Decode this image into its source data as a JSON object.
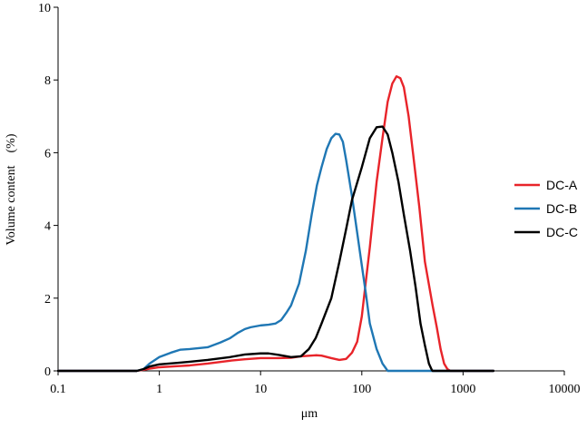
{
  "chart_data": {
    "type": "line",
    "title": "",
    "xlabel": "μm",
    "ylabel": "Volume content　(%)",
    "x_scale": "log",
    "xlim": [
      0.1,
      10000
    ],
    "ylim": [
      0,
      10
    ],
    "x_ticks": [
      0.1,
      1,
      10,
      100,
      1000,
      10000
    ],
    "x_tick_labels": [
      "0.1",
      "1",
      "10",
      "100",
      "1000",
      "10000"
    ],
    "y_ticks": [
      0,
      2,
      4,
      6,
      8,
      10
    ],
    "y_tick_labels": [
      "0",
      "2",
      "4",
      "6",
      "8",
      "10"
    ],
    "grid": false,
    "legend_position": "right",
    "series": [
      {
        "name": "DC-A",
        "color": "#e8242a",
        "points": [
          [
            0.1,
            0
          ],
          [
            0.6,
            0
          ],
          [
            0.7,
            0.03
          ],
          [
            0.8,
            0.06
          ],
          [
            1,
            0.1
          ],
          [
            1.5,
            0.13
          ],
          [
            2,
            0.15
          ],
          [
            3,
            0.2
          ],
          [
            5,
            0.28
          ],
          [
            7,
            0.32
          ],
          [
            10,
            0.35
          ],
          [
            15,
            0.35
          ],
          [
            20,
            0.36
          ],
          [
            25,
            0.4
          ],
          [
            35,
            0.43
          ],
          [
            40,
            0.42
          ],
          [
            50,
            0.35
          ],
          [
            60,
            0.3
          ],
          [
            70,
            0.33
          ],
          [
            80,
            0.5
          ],
          [
            90,
            0.8
          ],
          [
            100,
            1.5
          ],
          [
            110,
            2.5
          ],
          [
            120,
            3.4
          ],
          [
            140,
            5.2
          ],
          [
            160,
            6.4
          ],
          [
            180,
            7.4
          ],
          [
            200,
            7.9
          ],
          [
            220,
            8.1
          ],
          [
            240,
            8.05
          ],
          [
            260,
            7.8
          ],
          [
            290,
            7.0
          ],
          [
            320,
            6.0
          ],
          [
            370,
            4.5
          ],
          [
            420,
            3.0
          ],
          [
            500,
            1.8
          ],
          [
            550,
            1.2
          ],
          [
            600,
            0.6
          ],
          [
            650,
            0.2
          ],
          [
            700,
            0.05
          ],
          [
            750,
            0
          ],
          [
            2000,
            0
          ]
        ]
      },
      {
        "name": "DC-B",
        "color": "#1f77b4",
        "points": [
          [
            0.1,
            0
          ],
          [
            0.6,
            0
          ],
          [
            0.7,
            0.05
          ],
          [
            0.8,
            0.2
          ],
          [
            1,
            0.38
          ],
          [
            1.3,
            0.5
          ],
          [
            1.6,
            0.58
          ],
          [
            2,
            0.6
          ],
          [
            3,
            0.65
          ],
          [
            4,
            0.78
          ],
          [
            5,
            0.9
          ],
          [
            6,
            1.05
          ],
          [
            7,
            1.15
          ],
          [
            8,
            1.2
          ],
          [
            10,
            1.25
          ],
          [
            12,
            1.27
          ],
          [
            14,
            1.3
          ],
          [
            16,
            1.4
          ],
          [
            18,
            1.6
          ],
          [
            20,
            1.8
          ],
          [
            24,
            2.4
          ],
          [
            28,
            3.3
          ],
          [
            32,
            4.3
          ],
          [
            36,
            5.1
          ],
          [
            40,
            5.6
          ],
          [
            45,
            6.1
          ],
          [
            50,
            6.4
          ],
          [
            55,
            6.52
          ],
          [
            60,
            6.5
          ],
          [
            65,
            6.3
          ],
          [
            70,
            5.8
          ],
          [
            80,
            4.8
          ],
          [
            90,
            3.8
          ],
          [
            100,
            2.9
          ],
          [
            110,
            2.1
          ],
          [
            120,
            1.3
          ],
          [
            140,
            0.6
          ],
          [
            160,
            0.2
          ],
          [
            175,
            0.05
          ],
          [
            180,
            0
          ],
          [
            2000,
            0
          ]
        ]
      },
      {
        "name": "DC-C",
        "color": "#000000",
        "points": [
          [
            0.1,
            0
          ],
          [
            0.6,
            0
          ],
          [
            0.7,
            0.05
          ],
          [
            0.8,
            0.12
          ],
          [
            1,
            0.18
          ],
          [
            1.5,
            0.22
          ],
          [
            2,
            0.25
          ],
          [
            3,
            0.3
          ],
          [
            5,
            0.38
          ],
          [
            7,
            0.45
          ],
          [
            10,
            0.48
          ],
          [
            12,
            0.48
          ],
          [
            15,
            0.44
          ],
          [
            20,
            0.38
          ],
          [
            25,
            0.4
          ],
          [
            30,
            0.6
          ],
          [
            35,
            0.9
          ],
          [
            40,
            1.3
          ],
          [
            50,
            2.0
          ],
          [
            60,
            3.0
          ],
          [
            70,
            3.9
          ],
          [
            80,
            4.7
          ],
          [
            100,
            5.6
          ],
          [
            120,
            6.4
          ],
          [
            140,
            6.7
          ],
          [
            160,
            6.72
          ],
          [
            180,
            6.5
          ],
          [
            200,
            6.0
          ],
          [
            230,
            5.2
          ],
          [
            260,
            4.3
          ],
          [
            300,
            3.3
          ],
          [
            340,
            2.3
          ],
          [
            380,
            1.3
          ],
          [
            420,
            0.7
          ],
          [
            460,
            0.2
          ],
          [
            490,
            0.03
          ],
          [
            500,
            0
          ],
          [
            2000,
            0
          ]
        ]
      }
    ]
  }
}
